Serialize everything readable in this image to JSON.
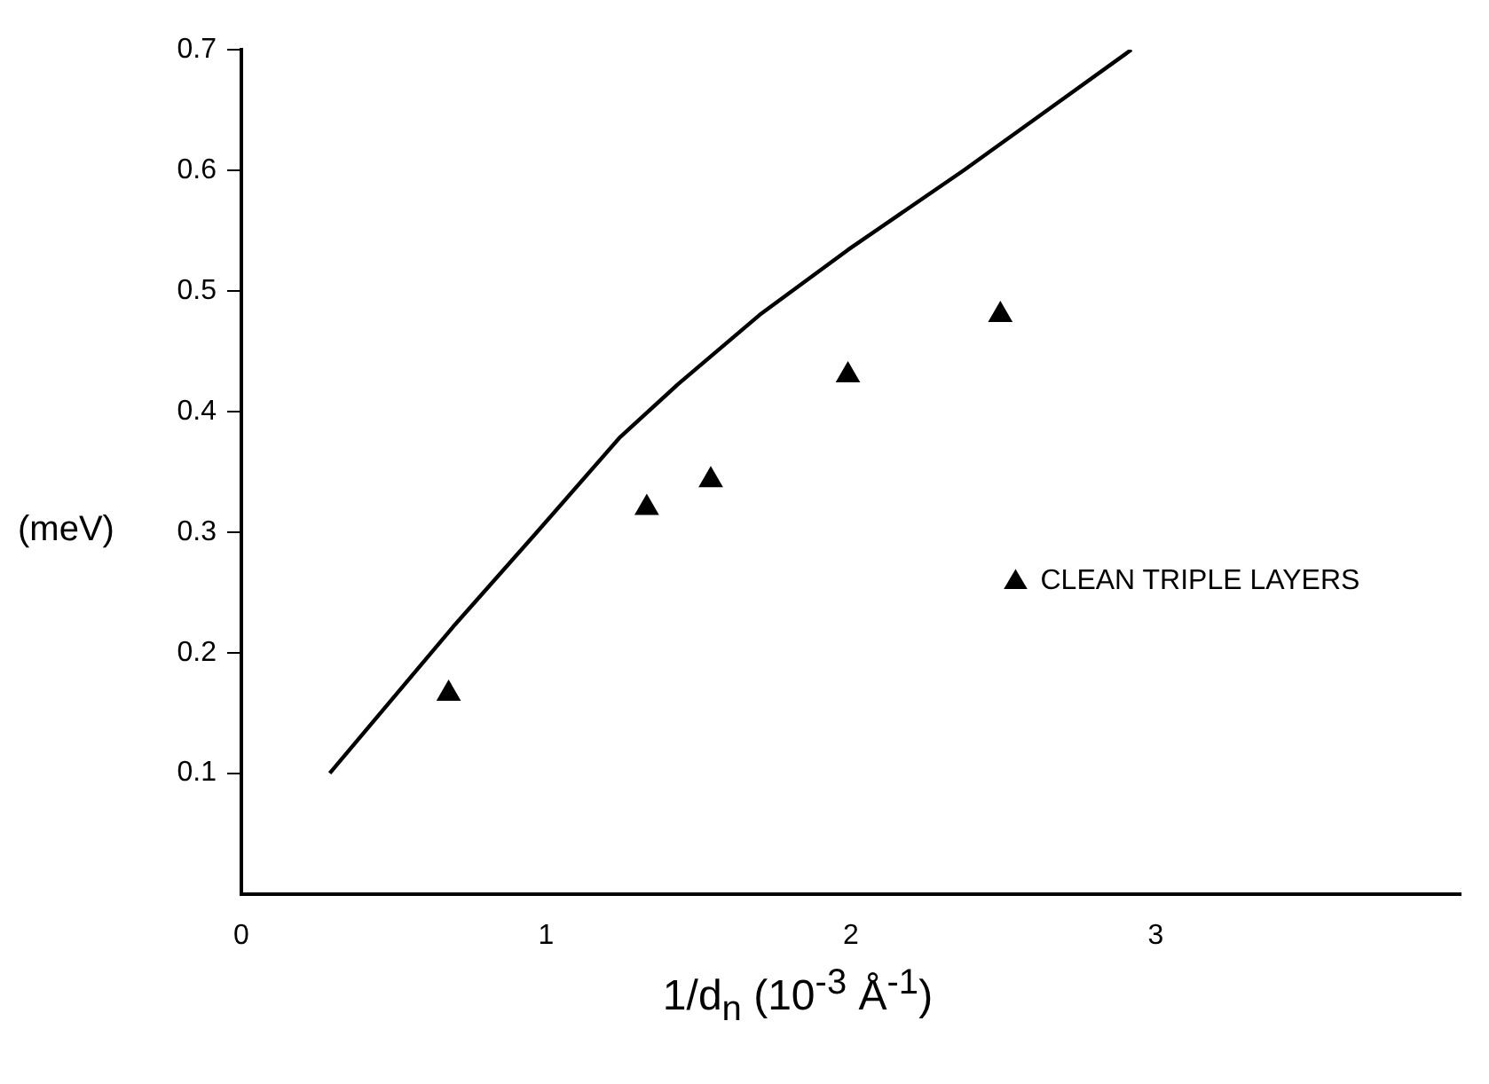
{
  "chart_data": {
    "type": "scatter",
    "xlabel": "1/d$_{n}$  (10$^{-3}$ Å$^{-1}$)",
    "ylabel": "(meV)",
    "xlim": [
      0,
      4
    ],
    "xticks": [
      0,
      1,
      2,
      3
    ],
    "ylim": [
      0,
      0.7
    ],
    "yticks": [
      0.1,
      0.2,
      0.3,
      0.4,
      0.5,
      0.6,
      0.7
    ],
    "grid": false,
    "legend": "right",
    "marker": "triangle",
    "series": [
      {
        "type": "line",
        "color": "#000000",
        "marker": "none",
        "line_style": "solid",
        "x": [
          0.29,
          0.7,
          0.97,
          1.24,
          1.43,
          1.7,
          1.99,
          2.37,
          2.64,
          2.92
        ],
        "values": [
          0.1,
          0.223,
          0.3,
          0.378,
          0.422,
          0.48,
          0.534,
          0.6,
          0.649,
          0.7
        ]
      },
      {
        "type": "scatter",
        "name": "CLEAN TRIPLE LAYERS",
        "color": "#000000",
        "x": [
          0.68,
          1.33,
          1.54,
          1.99,
          2.49
        ],
        "values": [
          0.166,
          0.32,
          0.343,
          0.43,
          0.48
        ]
      }
    ]
  }
}
